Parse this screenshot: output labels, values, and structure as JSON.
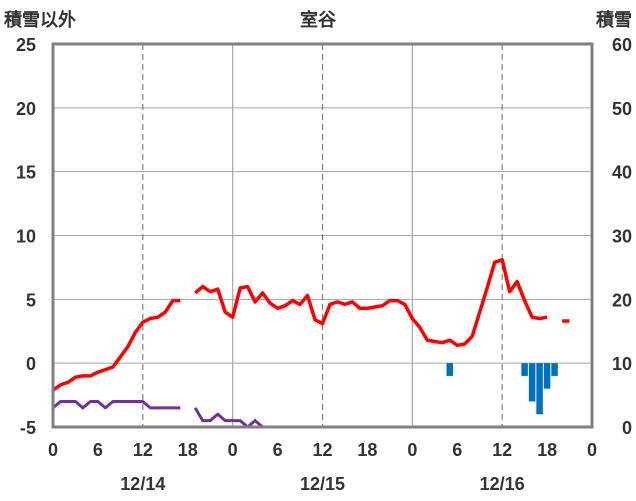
{
  "chart_data": {
    "type": "line",
    "title": "室谷",
    "y_left_label": "積雪以外",
    "y_right_label": "積雪",
    "y_left_ticks": [
      "25",
      "20",
      "15",
      "10",
      "5",
      "0",
      "-5"
    ],
    "y_right_ticks": [
      "60",
      "50",
      "40",
      "30",
      "20",
      "10",
      "0"
    ],
    "ylim_left": [
      -5,
      25
    ],
    "ylim_right": [
      0,
      60
    ],
    "xlim_hours": [
      0,
      72
    ],
    "x_tick_labels": [
      "0",
      "6",
      "12",
      "18",
      "0",
      "6",
      "12",
      "18",
      "0",
      "6",
      "12",
      "18",
      "0"
    ],
    "date_labels": [
      "12/14",
      "12/15",
      "12/16"
    ],
    "grid": true,
    "colors": {
      "temperature": "#ff0000",
      "wind": "#7030a0",
      "precipitation": "#0070c0",
      "frame": "#808080",
      "text": "#333333"
    },
    "series": [
      {
        "key": "temperature",
        "axis": "left",
        "segments": [
          [
            [
              0,
              -2.1
            ],
            [
              1,
              -1.7
            ],
            [
              2,
              -1.5
            ],
            [
              3,
              -1.1
            ],
            [
              4,
              -1.0
            ],
            [
              5,
              -1.0
            ],
            [
              6,
              -0.7
            ],
            [
              7,
              -0.5
            ],
            [
              8,
              -0.3
            ],
            [
              9,
              0.5
            ],
            [
              10,
              1.3
            ],
            [
              11,
              2.4
            ],
            [
              12,
              3.2
            ],
            [
              13,
              3.5
            ],
            [
              14,
              3.6
            ],
            [
              15,
              4.0
            ],
            [
              16,
              4.9
            ],
            [
              17,
              4.9
            ]
          ],
          [
            [
              19,
              5.5
            ],
            [
              20,
              6.0
            ],
            [
              21,
              5.6
            ],
            [
              22,
              5.8
            ],
            [
              23,
              4.0
            ],
            [
              24,
              3.6
            ],
            [
              25,
              5.9
            ],
            [
              26,
              6.0
            ],
            [
              27,
              4.8
            ],
            [
              28,
              5.5
            ],
            [
              29,
              4.7
            ],
            [
              30,
              4.3
            ],
            [
              31,
              4.5
            ],
            [
              32,
              4.9
            ],
            [
              33,
              4.6
            ],
            [
              34,
              5.3
            ],
            [
              35,
              3.4
            ],
            [
              36,
              3.1
            ],
            [
              37,
              4.6
            ],
            [
              38,
              4.8
            ],
            [
              39,
              4.6
            ],
            [
              40,
              4.8
            ],
            [
              41,
              4.3
            ],
            [
              42,
              4.3
            ],
            [
              43,
              4.4
            ],
            [
              44,
              4.5
            ],
            [
              45,
              4.9
            ],
            [
              46,
              4.9
            ],
            [
              47,
              4.6
            ],
            [
              48,
              3.5
            ],
            [
              49,
              2.8
            ],
            [
              50,
              1.8
            ],
            [
              51,
              1.7
            ],
            [
              52,
              1.6
            ],
            [
              53,
              1.8
            ],
            [
              54,
              1.4
            ],
            [
              55,
              1.5
            ],
            [
              56,
              2.1
            ],
            [
              57,
              4.0
            ],
            [
              58,
              5.9
            ],
            [
              59,
              7.9
            ],
            [
              60,
              8.1
            ],
            [
              61,
              5.6
            ],
            [
              62,
              6.4
            ],
            [
              63,
              4.9
            ],
            [
              64,
              3.6
            ],
            [
              65,
              3.5
            ],
            [
              66,
              3.6
            ]
          ],
          [
            [
              68,
              3.3
            ],
            [
              69,
              3.3
            ]
          ]
        ]
      },
      {
        "key": "wind",
        "axis": "left",
        "segments": [
          [
            [
              0,
              -3.5
            ],
            [
              1,
              -3.0
            ],
            [
              2,
              -3.0
            ],
            [
              3,
              -3.0
            ],
            [
              4,
              -3.5
            ],
            [
              5,
              -3.0
            ],
            [
              6,
              -3.0
            ],
            [
              7,
              -3.5
            ],
            [
              8,
              -3.0
            ],
            [
              9,
              -3.0
            ],
            [
              10,
              -3.0
            ],
            [
              11,
              -3.0
            ],
            [
              12,
              -3.0
            ],
            [
              13,
              -3.5
            ],
            [
              14,
              -3.5
            ],
            [
              15,
              -3.5
            ],
            [
              16,
              -3.5
            ],
            [
              17,
              -3.5
            ]
          ],
          [
            [
              19,
              -3.5
            ],
            [
              20,
              -4.5
            ],
            [
              21,
              -4.5
            ],
            [
              22,
              -4.0
            ],
            [
              23,
              -4.5
            ],
            [
              24,
              -4.5
            ],
            [
              25,
              -4.5
            ],
            [
              26,
              -5.0
            ],
            [
              27,
              -4.5
            ],
            [
              28,
              -5.0
            ],
            [
              66,
              -5.0
            ]
          ],
          [
            [
              68,
              -5.0
            ],
            [
              69,
              -5.0
            ]
          ]
        ]
      }
    ],
    "precipitation_bars": [
      {
        "hour": 53,
        "value": 1
      },
      {
        "hour": 63,
        "value": 1
      },
      {
        "hour": 64,
        "value": 3
      },
      {
        "hour": 65,
        "value": 4
      },
      {
        "hour": 66,
        "value": 2
      },
      {
        "hour": 67,
        "value": 1
      }
    ],
    "precipitation_unit_left": 0.5
  }
}
